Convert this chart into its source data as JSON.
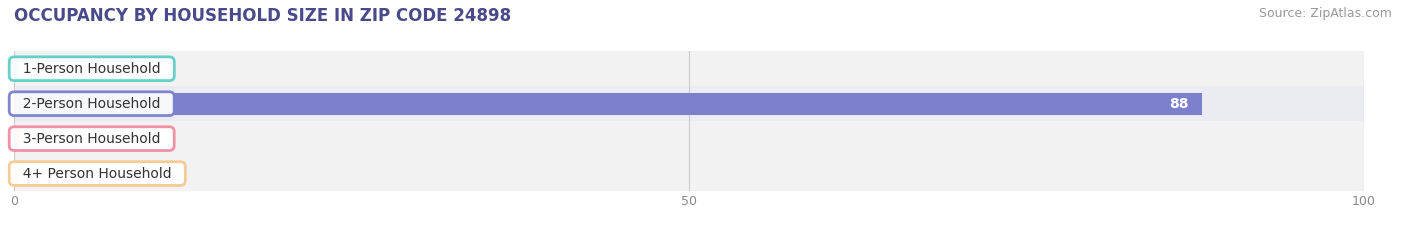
{
  "title": "OCCUPANCY BY HOUSEHOLD SIZE IN ZIP CODE 24898",
  "source": "Source: ZipAtlas.com",
  "categories": [
    "1-Person Household",
    "2-Person Household",
    "3-Person Household",
    "4+ Person Household"
  ],
  "values": [
    0,
    88,
    0,
    0
  ],
  "bar_colors": [
    "#5ecdc8",
    "#7b7fcc",
    "#f08ca0",
    "#f5c990"
  ],
  "label_bg_color": "#ffffff",
  "label_border_colors": [
    "#5ecdc8",
    "#7b7fcc",
    "#f08ca0",
    "#f5c990"
  ],
  "xlim": [
    0,
    100
  ],
  "xticks": [
    0,
    50,
    100
  ],
  "bar_height": 0.62,
  "background_color": "#ffffff",
  "row_bg_colors": [
    "#f2f2f2",
    "#ebebf2",
    "#f2f2f2",
    "#f2f2f2"
  ],
  "value_label_color_inside": "#ffffff",
  "value_label_color_outside": "#888888",
  "title_fontsize": 12,
  "source_fontsize": 9,
  "label_fontsize": 10,
  "tick_fontsize": 9,
  "title_color": "#4a4a8a"
}
